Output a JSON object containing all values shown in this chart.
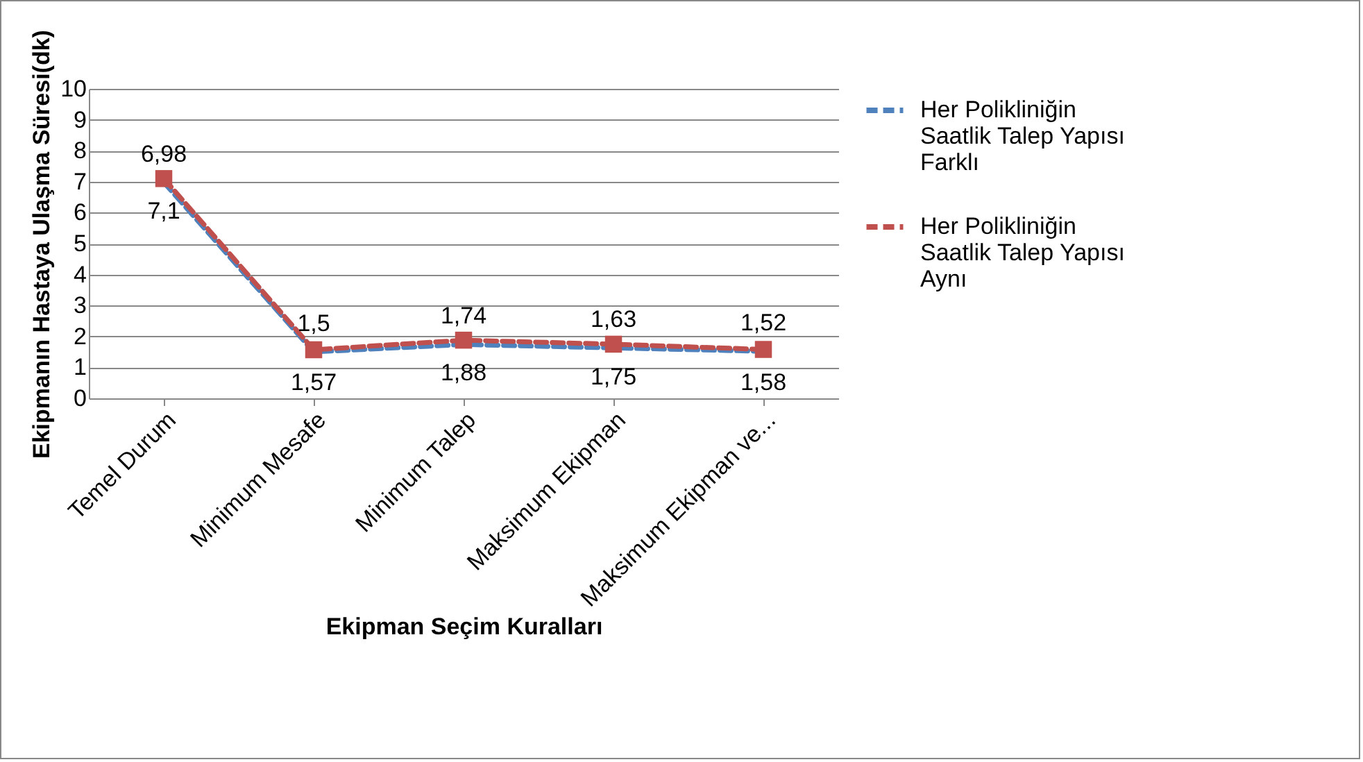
{
  "chart_data": {
    "type": "line",
    "xlabel": "Ekipman Seçim Kuralları",
    "ylabel": "Ekipmanın Hastaya Ulaşma Süresi(dk)",
    "categories": [
      "Temel Durum",
      "Minimum Mesafe",
      "Minimum Talep",
      "Maksimum Ekipman",
      "Maksimum Ekipman ve..."
    ],
    "series": [
      {
        "name": "Her Polikliniğin Saatlik Talep Yapısı Farklı",
        "color": "#4f81bd",
        "values": [
          6.98,
          1.5,
          1.74,
          1.63,
          1.52
        ],
        "value_labels": [
          "6,98",
          "1,5",
          "1,74",
          "1,63",
          "1,52"
        ],
        "line_style": "dashed",
        "marker": "none"
      },
      {
        "name": "Her Polikliniğin Saatlik Talep Yapısı Aynı",
        "color": "#c0504d",
        "values": [
          7.1,
          1.57,
          1.88,
          1.75,
          1.58
        ],
        "value_labels": [
          "7,1",
          "1,57",
          "1,88",
          "1,75",
          "1,58"
        ],
        "line_style": "dashed",
        "marker": "square"
      }
    ],
    "ylim": [
      0,
      10
    ],
    "yticks": [
      0,
      1,
      2,
      3,
      4,
      5,
      6,
      7,
      8,
      9,
      10
    ],
    "grid": "y",
    "legend": "right"
  }
}
